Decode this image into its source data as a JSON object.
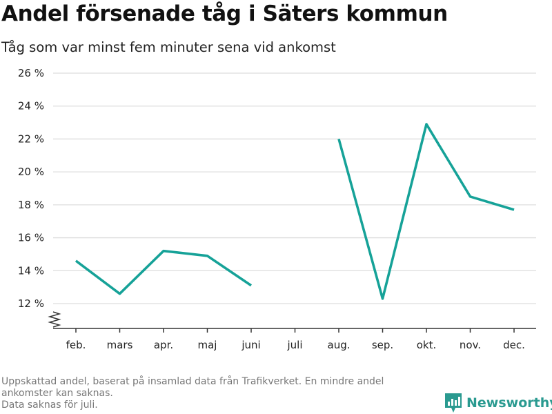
{
  "title": "Andel försenade tåg i Säters kommun",
  "subtitle": "Tåg som var minst fem minuter sena vid ankomst",
  "footnote": {
    "line1": "Uppskattad andel, baserat på insamlad data från Trafikverket. En mindre andel ankomster kan saknas.",
    "line2": "Data saknas för juli."
  },
  "brand": {
    "name": "Newsworthy",
    "icon": "bar-chart-logo-icon"
  },
  "colors": {
    "line": "#16a298",
    "grid": "#dddddd",
    "axis": "#333333",
    "brand": "#2a9a90"
  },
  "chart_data": {
    "type": "line",
    "title": "Andel försenade tåg i Säters kommun",
    "subtitle": "Tåg som var minst fem minuter sena vid ankomst",
    "categories": [
      "feb.",
      "mars",
      "apr.",
      "maj",
      "juni",
      "juli",
      "aug.",
      "sep.",
      "okt.",
      "nov.",
      "dec."
    ],
    "series": [
      {
        "values": [
          14.6,
          12.6,
          15.2,
          14.9,
          13.1,
          null,
          22.0,
          12.3,
          22.9,
          18.5,
          17.7
        ]
      }
    ],
    "yticks": [
      12,
      14,
      16,
      18,
      20,
      22,
      24,
      26
    ],
    "ytick_labels": [
      "12 %",
      "14 %",
      "16 %",
      "18 %",
      "20 %",
      "22 %",
      "24 %",
      "26 %"
    ],
    "ylim": [
      12,
      26
    ],
    "y_axis_break": true,
    "grid": true,
    "legend": "none"
  }
}
